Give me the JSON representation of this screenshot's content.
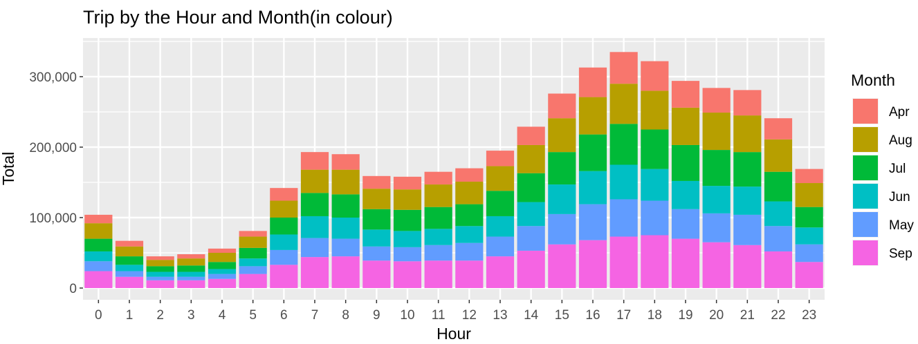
{
  "chart_data": {
    "type": "bar",
    "stacked": true,
    "title": "Trip by the Hour and Month(in colour)",
    "xlabel": "Hour",
    "ylabel": "Total",
    "categories": [
      "0",
      "1",
      "2",
      "3",
      "4",
      "5",
      "6",
      "7",
      "8",
      "9",
      "10",
      "11",
      "12",
      "13",
      "14",
      "15",
      "16",
      "17",
      "18",
      "19",
      "20",
      "21",
      "22",
      "23"
    ],
    "ylim": [
      0,
      350000
    ],
    "yticks": [
      0,
      100000,
      200000,
      300000
    ],
    "ytick_labels": [
      "0",
      "100,000",
      "200,000",
      "300,000"
    ],
    "grid": true,
    "legend": {
      "title": "Month",
      "position": "right"
    },
    "series": [
      {
        "name": "Sep",
        "color": "#F564E3",
        "values": [
          24000,
          16000,
          11000,
          11000,
          13000,
          20000,
          33000,
          44000,
          45000,
          39000,
          38000,
          39000,
          39000,
          45000,
          53000,
          62000,
          68000,
          73000,
          75000,
          70000,
          65000,
          61000,
          52000,
          37000
        ]
      },
      {
        "name": "May",
        "color": "#619CFF",
        "values": [
          14000,
          8000,
          5000,
          5000,
          7000,
          11000,
          21000,
          27000,
          25000,
          20000,
          20000,
          22000,
          25000,
          28000,
          35000,
          43000,
          51000,
          53000,
          49000,
          42000,
          41000,
          43000,
          36000,
          25000
        ]
      },
      {
        "name": "Jun",
        "color": "#00BFC4",
        "values": [
          14000,
          9000,
          7000,
          7000,
          7000,
          11000,
          22000,
          31000,
          30000,
          24000,
          23000,
          23000,
          24000,
          29000,
          34000,
          42000,
          47000,
          49000,
          45000,
          40000,
          39000,
          40000,
          35000,
          24000
        ]
      },
      {
        "name": "Jul",
        "color": "#00BA38",
        "values": [
          18000,
          12000,
          8000,
          9000,
          10000,
          15000,
          24000,
          33000,
          33000,
          29000,
          30000,
          31000,
          31000,
          36000,
          41000,
          46000,
          52000,
          58000,
          56000,
          51000,
          51000,
          49000,
          42000,
          29000
        ]
      },
      {
        "name": "Aug",
        "color": "#B79F00",
        "values": [
          22000,
          14000,
          9000,
          10000,
          13000,
          16000,
          24000,
          33000,
          35000,
          29000,
          29000,
          32000,
          32000,
          35000,
          40000,
          48000,
          53000,
          57000,
          55000,
          53000,
          53000,
          52000,
          46000,
          34000
        ]
      },
      {
        "name": "Apr",
        "color": "#F8766D",
        "values": [
          12000,
          8000,
          5000,
          6000,
          6000,
          8000,
          18000,
          25000,
          22000,
          18000,
          18000,
          18000,
          19000,
          22000,
          26000,
          35000,
          42000,
          45000,
          42000,
          38000,
          35000,
          36000,
          30000,
          20000
        ]
      }
    ],
    "legend_order": [
      "Apr",
      "Aug",
      "Jul",
      "Jun",
      "May",
      "Sep"
    ]
  }
}
